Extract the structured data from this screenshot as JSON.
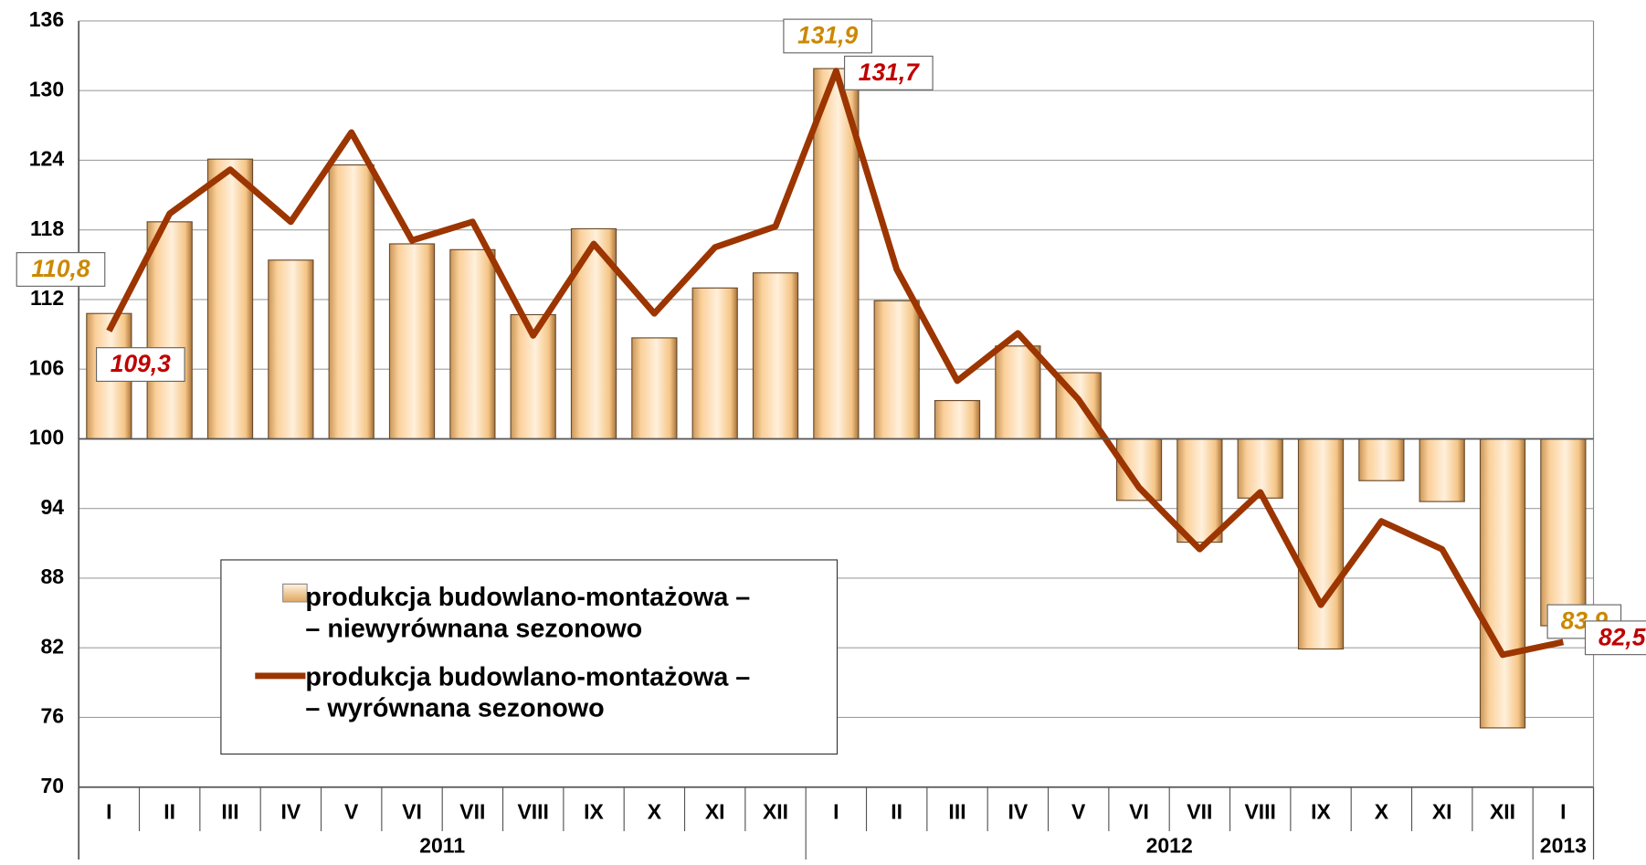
{
  "chart_data": {
    "type": "bar",
    "ylim": [
      70,
      136
    ],
    "yticks": [
      70,
      76,
      82,
      88,
      94,
      100,
      106,
      112,
      118,
      124,
      130,
      136
    ],
    "baseline": 100,
    "grid": true,
    "groups": [
      {
        "name": "2011",
        "categories": [
          "I",
          "II",
          "III",
          "IV",
          "V",
          "VI",
          "VII",
          "VIII",
          "IX",
          "X",
          "XI",
          "XII"
        ]
      },
      {
        "name": "2012",
        "categories": [
          "I",
          "II",
          "III",
          "IV",
          "V",
          "VI",
          "VII",
          "VIII",
          "IX",
          "X",
          "XI",
          "XII"
        ]
      },
      {
        "name": "2013",
        "categories": [
          "I"
        ]
      }
    ],
    "series": [
      {
        "name": "produkcja budowlano-montażowa –\n– niewyrównana sezonowo",
        "type": "bar",
        "color": "#fbd09a",
        "label_color": "#cc8800",
        "values": [
          110.8,
          118.7,
          124.1,
          115.4,
          123.6,
          116.8,
          116.3,
          110.7,
          118.1,
          108.7,
          113.0,
          114.3,
          131.9,
          111.9,
          103.3,
          108.0,
          105.7,
          94.7,
          91.1,
          94.9,
          81.9,
          96.4,
          94.6,
          75.1,
          83.9
        ],
        "value_labels": [
          "110,8",
          null,
          null,
          null,
          null,
          null,
          null,
          null,
          null,
          null,
          null,
          null,
          "131,9",
          null,
          null,
          null,
          null,
          null,
          null,
          null,
          null,
          null,
          null,
          null,
          "83,9"
        ]
      },
      {
        "name": "produkcja budowlano-montażowa –\n– wyrównana sezonowo",
        "type": "line",
        "color": "#9c3500",
        "label_color": "#c00000",
        "values": [
          109.3,
          119.4,
          123.2,
          118.7,
          126.4,
          117.1,
          118.7,
          108.9,
          116.8,
          110.8,
          116.5,
          118.3,
          131.7,
          114.6,
          105.0,
          109.1,
          103.4,
          95.8,
          90.5,
          95.4,
          85.7,
          92.9,
          90.5,
          81.4,
          82.5
        ],
        "value_labels": [
          "109,3",
          null,
          null,
          null,
          null,
          null,
          null,
          null,
          null,
          null,
          null,
          null,
          "131,7",
          null,
          null,
          null,
          null,
          null,
          null,
          null,
          null,
          null,
          null,
          null,
          "82,5"
        ]
      }
    ]
  }
}
